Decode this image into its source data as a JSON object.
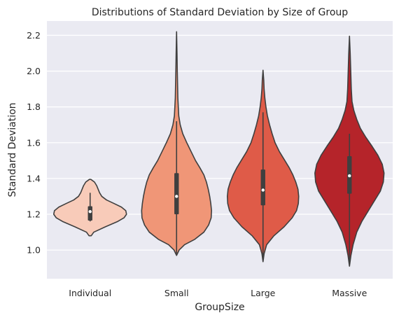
{
  "chart_data": {
    "type": "violin",
    "title": "Distributions of Standard Deviation by Size of Group",
    "xlabel": "GroupSize",
    "ylabel": "Standard Deviation",
    "ylim": [
      0.84,
      2.28
    ],
    "yticks": [
      1.0,
      1.2,
      1.4,
      1.6,
      1.8,
      2.0,
      2.2
    ],
    "ytick_labels": [
      "1.0",
      "1.2",
      "1.4",
      "1.6",
      "1.8",
      "2.0",
      "2.2"
    ],
    "grid": true,
    "categories": [
      "Individual",
      "Small",
      "Large",
      "Massive"
    ],
    "series": [
      {
        "category": "Individual",
        "color": "#f8cbb9",
        "min": 1.08,
        "max": 1.395,
        "q1": 1.165,
        "median": 1.215,
        "q3": 1.245,
        "whisker_low": 1.16,
        "whisker_high": 1.32,
        "density": [
          [
            1.08,
            0.03
          ],
          [
            1.1,
            0.1
          ],
          [
            1.13,
            0.42
          ],
          [
            1.16,
            0.76
          ],
          [
            1.18,
            0.93
          ],
          [
            1.2,
            1.0
          ],
          [
            1.22,
            0.98
          ],
          [
            1.24,
            0.86
          ],
          [
            1.26,
            0.66
          ],
          [
            1.28,
            0.45
          ],
          [
            1.3,
            0.32
          ],
          [
            1.32,
            0.26
          ],
          [
            1.34,
            0.22
          ],
          [
            1.36,
            0.18
          ],
          [
            1.38,
            0.12
          ],
          [
            1.395,
            0.02
          ]
        ]
      },
      {
        "category": "Small",
        "color": "#f09677",
        "min": 0.97,
        "max": 2.22,
        "q1": 1.2,
        "median": 1.3,
        "q3": 1.43,
        "whisker_low": 0.98,
        "whisker_high": 1.72,
        "density": [
          [
            0.97,
            0.0
          ],
          [
            1.0,
            0.07
          ],
          [
            1.03,
            0.22
          ],
          [
            1.06,
            0.5
          ],
          [
            1.1,
            0.75
          ],
          [
            1.14,
            0.88
          ],
          [
            1.18,
            0.95
          ],
          [
            1.22,
            0.96
          ],
          [
            1.26,
            0.94
          ],
          [
            1.3,
            0.91
          ],
          [
            1.34,
            0.87
          ],
          [
            1.38,
            0.82
          ],
          [
            1.42,
            0.75
          ],
          [
            1.46,
            0.64
          ],
          [
            1.5,
            0.52
          ],
          [
            1.55,
            0.4
          ],
          [
            1.6,
            0.28
          ],
          [
            1.65,
            0.17
          ],
          [
            1.7,
            0.1
          ],
          [
            1.75,
            0.06
          ],
          [
            1.85,
            0.035
          ],
          [
            2.0,
            0.02
          ],
          [
            2.1,
            0.012
          ],
          [
            2.22,
            0.0
          ]
        ]
      },
      {
        "category": "Large",
        "color": "#df5b48",
        "min": 0.935,
        "max": 2.005,
        "q1": 1.25,
        "median": 1.335,
        "q3": 1.45,
        "whisker_low": 0.95,
        "whisker_high": 1.77,
        "density": [
          [
            0.935,
            0.0
          ],
          [
            0.98,
            0.03
          ],
          [
            1.03,
            0.1
          ],
          [
            1.08,
            0.3
          ],
          [
            1.13,
            0.58
          ],
          [
            1.18,
            0.8
          ],
          [
            1.22,
            0.92
          ],
          [
            1.26,
            0.97
          ],
          [
            1.3,
            0.98
          ],
          [
            1.34,
            0.96
          ],
          [
            1.38,
            0.9
          ],
          [
            1.42,
            0.82
          ],
          [
            1.46,
            0.72
          ],
          [
            1.5,
            0.6
          ],
          [
            1.55,
            0.45
          ],
          [
            1.6,
            0.33
          ],
          [
            1.65,
            0.25
          ],
          [
            1.7,
            0.18
          ],
          [
            1.75,
            0.12
          ],
          [
            1.8,
            0.08
          ],
          [
            1.85,
            0.05
          ],
          [
            1.9,
            0.03
          ],
          [
            1.95,
            0.02
          ],
          [
            2.005,
            0.0
          ]
        ]
      },
      {
        "category": "Massive",
        "color": "#b5242a",
        "min": 0.91,
        "max": 2.195,
        "q1": 1.315,
        "median": 1.415,
        "q3": 1.525,
        "whisker_low": 0.92,
        "whisker_high": 1.65,
        "density": [
          [
            0.91,
            0.0
          ],
          [
            0.97,
            0.04
          ],
          [
            1.03,
            0.1
          ],
          [
            1.1,
            0.2
          ],
          [
            1.16,
            0.34
          ],
          [
            1.22,
            0.52
          ],
          [
            1.28,
            0.7
          ],
          [
            1.33,
            0.85
          ],
          [
            1.38,
            0.93
          ],
          [
            1.43,
            0.95
          ],
          [
            1.48,
            0.9
          ],
          [
            1.53,
            0.78
          ],
          [
            1.58,
            0.62
          ],
          [
            1.63,
            0.45
          ],
          [
            1.68,
            0.3
          ],
          [
            1.73,
            0.2
          ],
          [
            1.78,
            0.12
          ],
          [
            1.83,
            0.07
          ],
          [
            1.9,
            0.05
          ],
          [
            2.0,
            0.035
          ],
          [
            2.1,
            0.02
          ],
          [
            2.195,
            0.0
          ]
        ]
      }
    ]
  }
}
